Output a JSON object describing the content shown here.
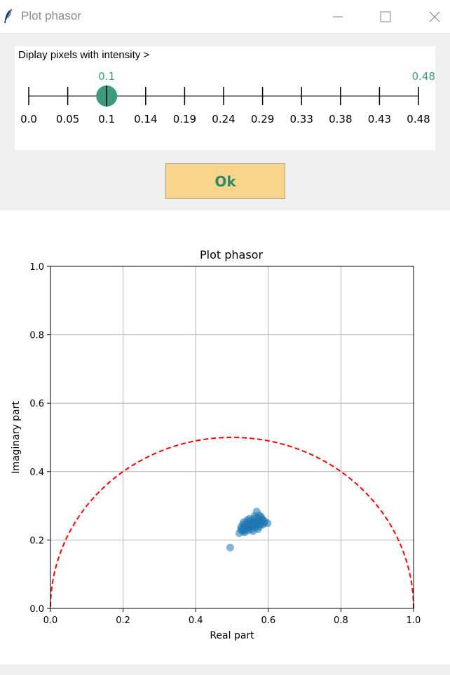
{
  "window": {
    "title": "Plot phasor"
  },
  "slider": {
    "label": "Diplay pixels with intensity >",
    "current_value": "0.1",
    "max_value": "0.48",
    "ticks": [
      "0.0",
      "0.05",
      "0.1",
      "0.14",
      "0.19",
      "0.24",
      "0.29",
      "0.33",
      "0.38",
      "0.43",
      "0.48"
    ],
    "value_fraction": 0.2,
    "accent_color": "#3a9b7e"
  },
  "ok_button": {
    "label": "Ok"
  },
  "chart_data": {
    "type": "scatter",
    "title": "Plot phasor",
    "xlabel": "Real part",
    "ylabel": "Imaginary part",
    "xlim": [
      0.0,
      1.0
    ],
    "ylim": [
      0.0,
      1.0
    ],
    "xticks": [
      "0.0",
      "0.2",
      "0.4",
      "0.6",
      "0.8",
      "1.0"
    ],
    "yticks": [
      "0.0",
      "0.2",
      "0.4",
      "0.6",
      "0.8",
      "1.0"
    ],
    "grid": true,
    "semicircle": {
      "center": [
        0.5,
        0.0
      ],
      "radius": 0.5,
      "color": "#ff0000",
      "style": "dashed"
    },
    "point_color": "#1f77b4",
    "points": [
      [
        0.495,
        0.178
      ],
      [
        0.598,
        0.249
      ],
      [
        0.568,
        0.283
      ],
      [
        0.52,
        0.22
      ],
      [
        0.525,
        0.23
      ],
      [
        0.53,
        0.225
      ],
      [
        0.535,
        0.24
      ],
      [
        0.54,
        0.232
      ],
      [
        0.545,
        0.245
      ],
      [
        0.55,
        0.238
      ],
      [
        0.555,
        0.25
      ],
      [
        0.56,
        0.242
      ],
      [
        0.565,
        0.255
      ],
      [
        0.57,
        0.248
      ],
      [
        0.575,
        0.26
      ],
      [
        0.58,
        0.252
      ],
      [
        0.585,
        0.245
      ],
      [
        0.535,
        0.222
      ],
      [
        0.545,
        0.228
      ],
      [
        0.555,
        0.232
      ],
      [
        0.565,
        0.236
      ],
      [
        0.575,
        0.24
      ],
      [
        0.585,
        0.258
      ],
      [
        0.53,
        0.245
      ],
      [
        0.54,
        0.25
      ],
      [
        0.55,
        0.256
      ],
      [
        0.56,
        0.262
      ],
      [
        0.57,
        0.265
      ],
      [
        0.58,
        0.268
      ],
      [
        0.525,
        0.238
      ],
      [
        0.575,
        0.272
      ],
      [
        0.59,
        0.255
      ],
      [
        0.532,
        0.252
      ],
      [
        0.548,
        0.262
      ],
      [
        0.562,
        0.27
      ],
      [
        0.538,
        0.235
      ],
      [
        0.552,
        0.242
      ],
      [
        0.568,
        0.246
      ],
      [
        0.582,
        0.262
      ],
      [
        0.542,
        0.258
      ],
      [
        0.558,
        0.226
      ],
      [
        0.572,
        0.232
      ],
      [
        0.528,
        0.232
      ],
      [
        0.588,
        0.25
      ],
      [
        0.546,
        0.236
      ],
      [
        0.563,
        0.25
      ],
      [
        0.553,
        0.247
      ],
      [
        0.543,
        0.242
      ],
      [
        0.533,
        0.228
      ],
      [
        0.578,
        0.246
      ]
    ]
  }
}
